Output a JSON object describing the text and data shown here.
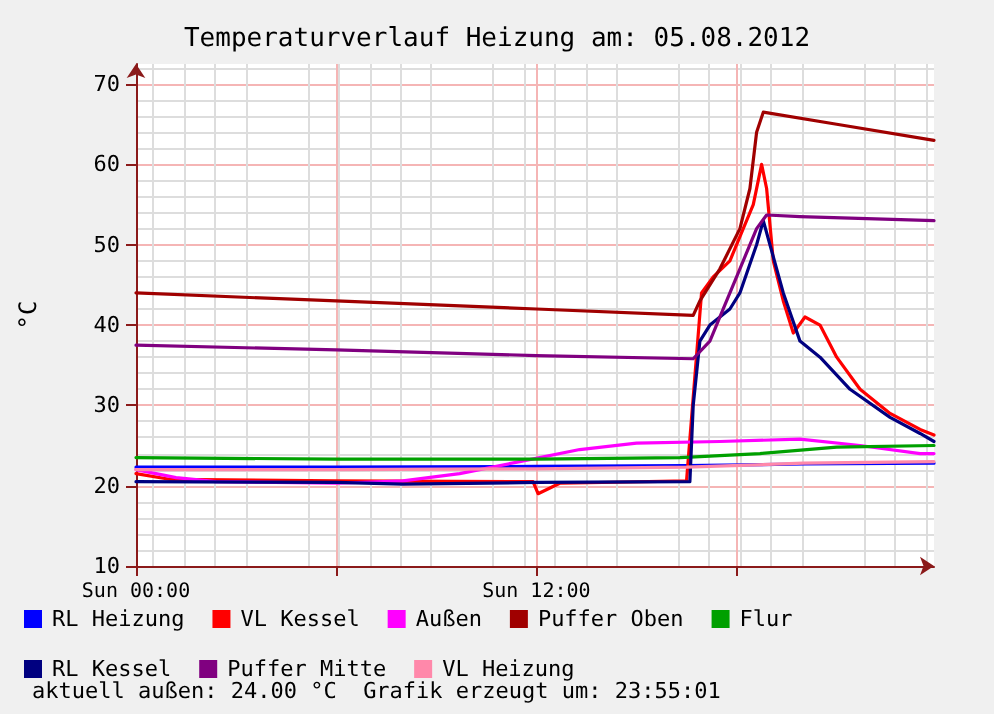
{
  "chart_data": {
    "type": "line",
    "title": "Temperaturverlauf Heizung am: 05.08.2012",
    "ylabel": "°C",
    "annotations": [
      "aktuell außen: 24.00 °C  Grafik erzeugt um: 23:55:01"
    ],
    "xlim": [
      "2012-08-05T00:00",
      "2012-08-05T23:55"
    ],
    "ylim": [
      10,
      72.5
    ],
    "xticks": [
      {
        "value": "2012-08-05T00:00",
        "label": "Sun 00:00"
      },
      {
        "value": "2012-08-05T06:00",
        "label": null
      },
      {
        "value": "2012-08-05T12:00",
        "label": "Sun 12:00"
      },
      {
        "value": "2012-08-05T18:00",
        "label": null
      }
    ],
    "yticks": [
      10,
      20,
      30,
      40,
      50,
      60,
      70
    ],
    "grid": true,
    "legend": "bottom",
    "marker": "none",
    "line_style": "solid",
    "series": [
      {
        "name": "RL Heizung",
        "color": "#0000ff",
        "x": [
          "2012-08-05T00:00",
          "2012-08-05T06:00",
          "2012-08-05T12:00",
          "2012-08-05T16:30",
          "2012-08-05T20:00",
          "2012-08-05T23:55"
        ],
        "values": [
          22.3,
          22.3,
          22.4,
          22.5,
          22.7,
          22.8
        ]
      },
      {
        "name": "VL Kessel",
        "color": "#ff0000",
        "x": [
          "2012-08-05T00:00",
          "2012-08-05T01:00",
          "2012-08-05T06:00",
          "2012-08-05T11:54",
          "2012-08-05T12:03",
          "2012-08-05T12:42",
          "2012-08-05T16:30",
          "2012-08-05T16:57",
          "2012-08-05T17:18",
          "2012-08-05T17:48",
          "2012-08-05T18:12",
          "2012-08-05T18:30",
          "2012-08-05T18:45",
          "2012-08-05T18:54",
          "2012-08-05T19:06",
          "2012-08-05T19:24",
          "2012-08-05T19:42",
          "2012-08-05T20:03",
          "2012-08-05T20:30",
          "2012-08-05T21:00",
          "2012-08-05T21:42",
          "2012-08-05T22:36",
          "2012-08-05T23:30",
          "2012-08-05T23:55"
        ],
        "values": [
          21.5,
          20.8,
          20.6,
          20.5,
          19,
          20.3,
          20.6,
          44,
          46,
          48,
          52,
          55,
          60,
          57,
          48,
          43,
          39,
          41,
          40,
          36,
          32,
          29,
          27,
          26.3
        ]
      },
      {
        "name": "Außen",
        "color": "#ff00ff",
        "x": [
          "2012-08-05T00:00",
          "2012-08-05T01:12",
          "2012-08-05T02:24",
          "2012-08-05T06:00",
          "2012-08-05T08:00",
          "2012-08-05T09:42",
          "2012-08-05T11:30",
          "2012-08-05T13:18",
          "2012-08-05T15:00",
          "2012-08-05T17:30",
          "2012-08-05T19:54",
          "2012-08-05T21:42",
          "2012-08-05T23:30",
          "2012-08-05T23:55"
        ],
        "values": [
          22,
          21,
          20.5,
          20.3,
          20.6,
          21.5,
          23,
          24.5,
          25.3,
          25.5,
          25.8,
          25,
          24,
          24
        ]
      },
      {
        "name": "Puffer Oben",
        "color": "#a00000",
        "x": [
          "2012-08-05T00:00",
          "2012-08-05T06:00",
          "2012-08-05T12:00",
          "2012-08-05T16:42",
          "2012-08-05T16:54",
          "2012-08-05T17:30",
          "2012-08-05T18:06",
          "2012-08-05T18:24",
          "2012-08-05T18:36",
          "2012-08-05T18:48",
          "2012-08-05T21:00",
          "2012-08-05T23:55"
        ],
        "values": [
          44,
          43,
          42,
          41.2,
          43,
          47,
          52,
          57,
          64,
          66.5,
          65,
          63
        ]
      },
      {
        "name": "Flur",
        "color": "#00a000",
        "x": [
          "2012-08-05T00:00",
          "2012-08-05T06:00",
          "2012-08-05T12:00",
          "2012-08-05T16:18",
          "2012-08-05T18:42",
          "2012-08-05T21:00",
          "2012-08-05T23:55"
        ],
        "values": [
          23.5,
          23.3,
          23.3,
          23.5,
          24,
          24.8,
          25
        ]
      },
      {
        "name": "RL Kessel",
        "color": "#000080",
        "x": [
          "2012-08-05T00:00",
          "2012-08-05T06:00",
          "2012-08-05T08:00",
          "2012-08-05T12:00",
          "2012-08-05T16:36",
          "2012-08-05T16:42",
          "2012-08-05T16:54",
          "2012-08-05T17:12",
          "2012-08-05T17:48",
          "2012-08-05T18:06",
          "2012-08-05T18:36",
          "2012-08-05T18:48",
          "2012-08-05T19:00",
          "2012-08-05T19:24",
          "2012-08-05T19:54",
          "2012-08-05T20:30",
          "2012-08-05T21:24",
          "2012-08-05T22:36",
          "2012-08-05T23:30",
          "2012-08-05T23:55"
        ],
        "values": [
          20.5,
          20.4,
          20.2,
          20.4,
          20.5,
          30,
          38,
          40,
          42,
          44,
          50,
          53,
          50,
          44,
          38,
          36,
          32,
          28.5,
          26.5,
          25.5
        ]
      },
      {
        "name": "Puffer Mitte",
        "color": "#800080",
        "x": [
          "2012-08-05T00:00",
          "2012-08-05T06:00",
          "2012-08-05T12:00",
          "2012-08-05T16:42",
          "2012-08-05T17:12",
          "2012-08-05T17:36",
          "2012-08-05T18:06",
          "2012-08-05T18:36",
          "2012-08-05T18:54",
          "2012-08-05T19:54",
          "2012-08-05T23:55"
        ],
        "values": [
          37.5,
          36.9,
          36.2,
          35.8,
          38,
          42,
          47,
          52,
          53.7,
          53.5,
          53
        ]
      },
      {
        "name": "VL Heizung",
        "color": "#ff88aa",
        "x": [
          "2012-08-05T00:00",
          "2012-08-05T06:00",
          "2012-08-05T12:00",
          "2012-08-05T16:30",
          "2012-08-05T20:00",
          "2012-08-05T23:55"
        ],
        "values": [
          22,
          22,
          22.1,
          22.3,
          22.8,
          23
        ]
      }
    ]
  }
}
